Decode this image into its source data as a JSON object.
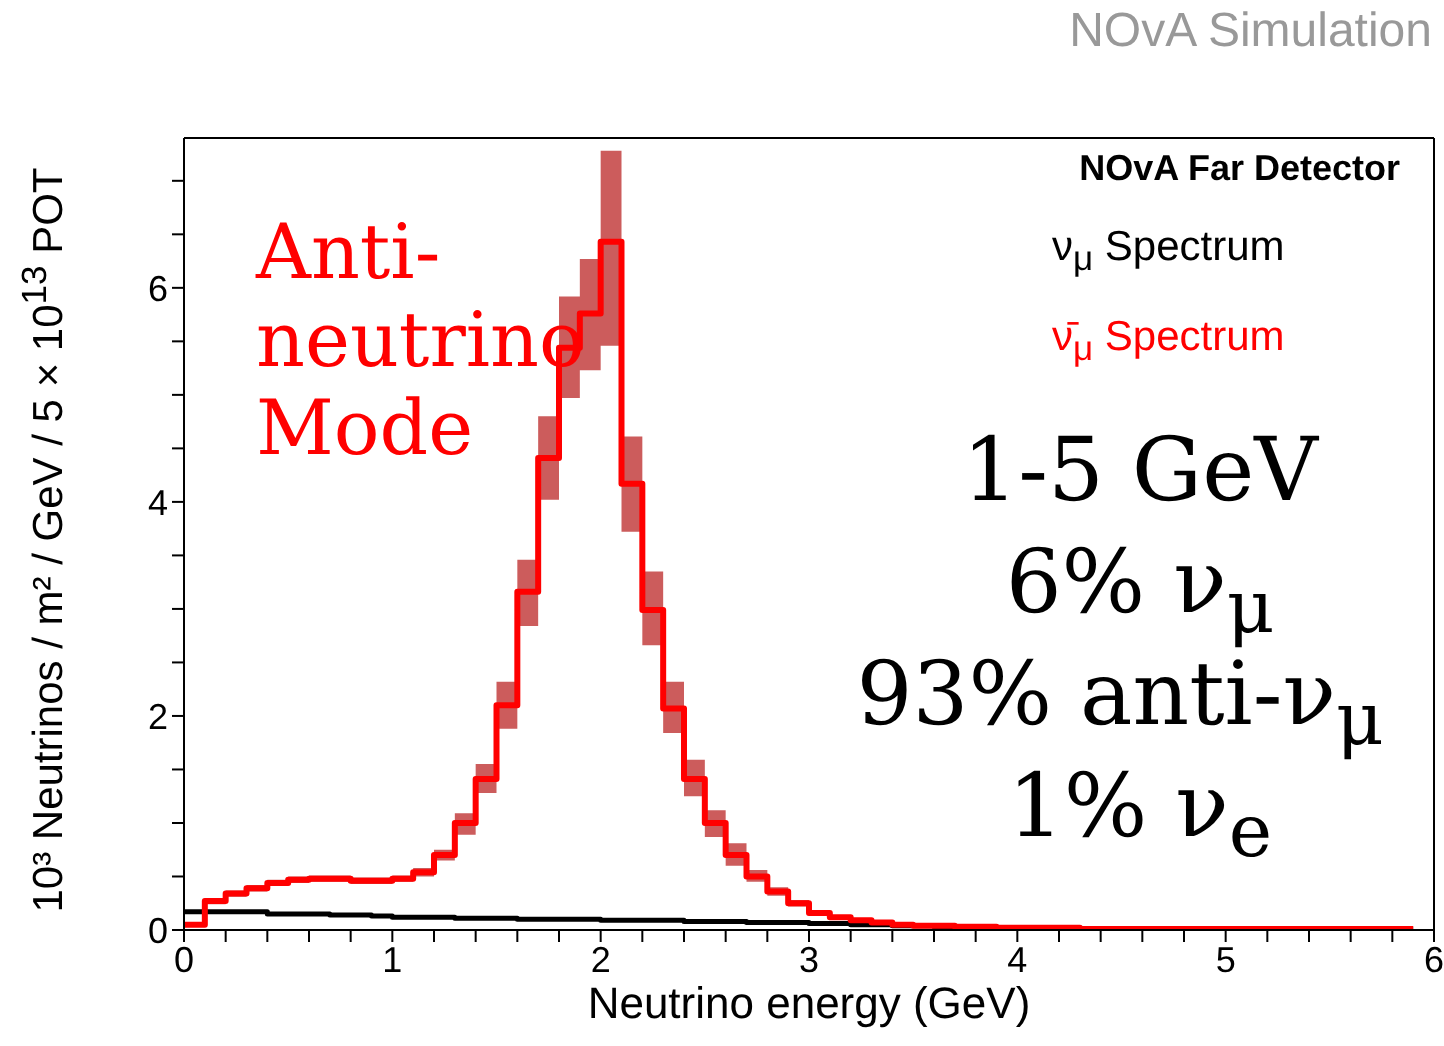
{
  "chart_data": {
    "type": "step",
    "title": "NOvA Far Detector",
    "xlabel": "Neutrino energy (GeV)",
    "ylabel": "10³ Neutrinos / m² / GeV / 5 × 10$^{13}$ POT",
    "annotations": [
      "NOvA Simulation",
      "Anti-\nneutrino\nMode",
      "1-5 GeV",
      "6% ν$_{μ}$",
      "93% anti-ν$_{μ}$",
      "1% ν$_{e}$"
    ],
    "x": [
      0,
      0.1,
      0.2,
      0.3,
      0.4,
      0.5,
      0.6,
      0.7,
      0.8,
      0.9,
      1,
      1.1,
      1.2,
      1.3,
      1.4,
      1.5,
      1.6,
      1.7,
      1.8,
      1.9,
      2,
      2.1,
      2.2,
      2.3,
      2.4,
      2.5,
      2.6,
      2.7,
      2.8,
      2.9,
      3,
      3.1,
      3.2,
      3.3,
      3.4,
      3.5,
      3.6,
      3.7,
      3.8,
      3.9,
      4,
      4.1,
      4.2,
      4.3,
      4.4,
      4.5,
      4.6,
      4.7,
      4.8,
      4.9,
      5,
      5.1,
      5.2,
      5.3,
      5.4,
      5.5,
      5.6,
      5.7,
      5.8,
      5.9
    ],
    "series": [
      {
        "name": "ν$_{μ}$ Spectrum",
        "color": "#000000",
        "values": [
          0.17,
          0.17,
          0.17,
          0.17,
          0.15,
          0.15,
          0.15,
          0.14,
          0.14,
          0.13,
          0.12,
          0.12,
          0.12,
          0.11,
          0.11,
          0.11,
          0.1,
          0.1,
          0.1,
          0.1,
          0.09,
          0.09,
          0.09,
          0.09,
          0.08,
          0.08,
          0.08,
          0.07,
          0.07,
          0.07,
          0.06,
          0.06,
          0.05,
          0.05,
          0.04,
          0.04,
          0.03,
          0.03,
          0.03,
          0.02,
          0.02,
          0.02,
          0.02,
          0.01,
          0.01,
          0.01,
          0.01,
          0.01,
          0.01,
          0.01,
          0.01,
          0.01,
          0.01,
          0.01,
          0.01,
          0.01,
          0.01,
          0.01,
          0.01,
          0.01
        ]
      },
      {
        "name": "ν̄$_{μ}$ Spectrum",
        "color": "#ff0000",
        "values": [
          0.05,
          0.27,
          0.34,
          0.39,
          0.44,
          0.47,
          0.48,
          0.48,
          0.46,
          0.46,
          0.48,
          0.54,
          0.7,
          1,
          1.41,
          2.1,
          3.16,
          4.41,
          5.44,
          5.76,
          6.43,
          4.17,
          2.99,
          2.07,
          1.41,
          1,
          0.7,
          0.5,
          0.36,
          0.25,
          0.16,
          0.12,
          0.09,
          0.07,
          0.05,
          0.04,
          0.04,
          0.03,
          0.03,
          0.02,
          0.02,
          0.02,
          0.02,
          0.01,
          0.01,
          0.01,
          0.01,
          0.01,
          0.01,
          0.01,
          0.01,
          0.01,
          0.01,
          0.01,
          0.01,
          0.01,
          0.01,
          0.01,
          0.01,
          0.01
        ],
        "lower": [
          0.03,
          0.24,
          0.31,
          0.36,
          0.41,
          0.44,
          0.45,
          0.45,
          0.43,
          0.43,
          0.45,
          0.5,
          0.65,
          0.89,
          1.28,
          1.88,
          2.84,
          4.02,
          4.97,
          5.23,
          5.46,
          3.72,
          2.66,
          1.84,
          1.25,
          0.87,
          0.6,
          0.45,
          0.32,
          0.22,
          0.14,
          null,
          null,
          null,
          null,
          null,
          null,
          null,
          null,
          null,
          null,
          null,
          null,
          null,
          null,
          null,
          null,
          null,
          null,
          null,
          null,
          null,
          null,
          null,
          null,
          null,
          null,
          null,
          null,
          null
        ],
        "upper": [
          0.07,
          0.3,
          0.37,
          0.42,
          0.47,
          0.5,
          0.51,
          0.51,
          0.49,
          0.49,
          0.51,
          0.58,
          0.75,
          1.09,
          1.55,
          2.32,
          3.46,
          4.8,
          5.92,
          6.27,
          7.28,
          4.61,
          3.35,
          2.32,
          1.59,
          1.12,
          0.81,
          0.56,
          0.4,
          0.28,
          0.18,
          null,
          null,
          null,
          null,
          null,
          null,
          null,
          null,
          null,
          null,
          null,
          null,
          null,
          null,
          null,
          null,
          null,
          null,
          null,
          null,
          null,
          null,
          null,
          null,
          null,
          null,
          null,
          null,
          null
        ]
      }
    ],
    "xlim": [
      0,
      6
    ],
    "ylim": [
      0,
      7.4
    ],
    "xticks": [
      0,
      {
        "value": 0.2,
        "label": null
      },
      {
        "value": 0.4,
        "label": null
      },
      {
        "value": 0.6,
        "label": null
      },
      {
        "value": 0.8,
        "label": null
      },
      1,
      {
        "value": 1.2,
        "label": null
      },
      {
        "value": 1.4,
        "label": null
      },
      {
        "value": 1.6,
        "label": null
      },
      {
        "value": 1.8,
        "label": null
      },
      2,
      {
        "value": 2.2,
        "label": null
      },
      {
        "value": 2.4,
        "label": null
      },
      {
        "value": 2.6,
        "label": null
      },
      {
        "value": 2.8,
        "label": null
      },
      3,
      {
        "value": 3.2,
        "label": null
      },
      {
        "value": 3.4,
        "label": null
      },
      {
        "value": 3.6,
        "label": null
      },
      {
        "value": 3.8,
        "label": null
      },
      4,
      {
        "value": 4.2,
        "label": null
      },
      {
        "value": 4.4,
        "label": null
      },
      {
        "value": 4.6,
        "label": null
      },
      {
        "value": 4.8,
        "label": null
      },
      5,
      {
        "value": 5.2,
        "label": null
      },
      {
        "value": 5.4,
        "label": null
      },
      {
        "value": 5.6,
        "label": null
      },
      {
        "value": 5.8,
        "label": null
      },
      6
    ],
    "yticks": [
      0,
      {
        "value": 0.5,
        "label": null
      },
      {
        "value": 1,
        "label": null
      },
      {
        "value": 1.5,
        "label": null
      },
      2,
      {
        "value": 2.5,
        "label": null
      },
      {
        "value": 3,
        "label": null
      },
      {
        "value": 3.5,
        "label": null
      },
      4,
      {
        "value": 4.5,
        "label": null
      },
      {
        "value": 5,
        "label": null
      },
      {
        "value": 5.5,
        "label": null
      },
      6,
      {
        "value": 6.5,
        "label": null
      },
      {
        "value": 7,
        "label": null
      }
    ],
    "grid": false,
    "legend": "top right",
    "marker": "none",
    "line_style": "solid"
  }
}
